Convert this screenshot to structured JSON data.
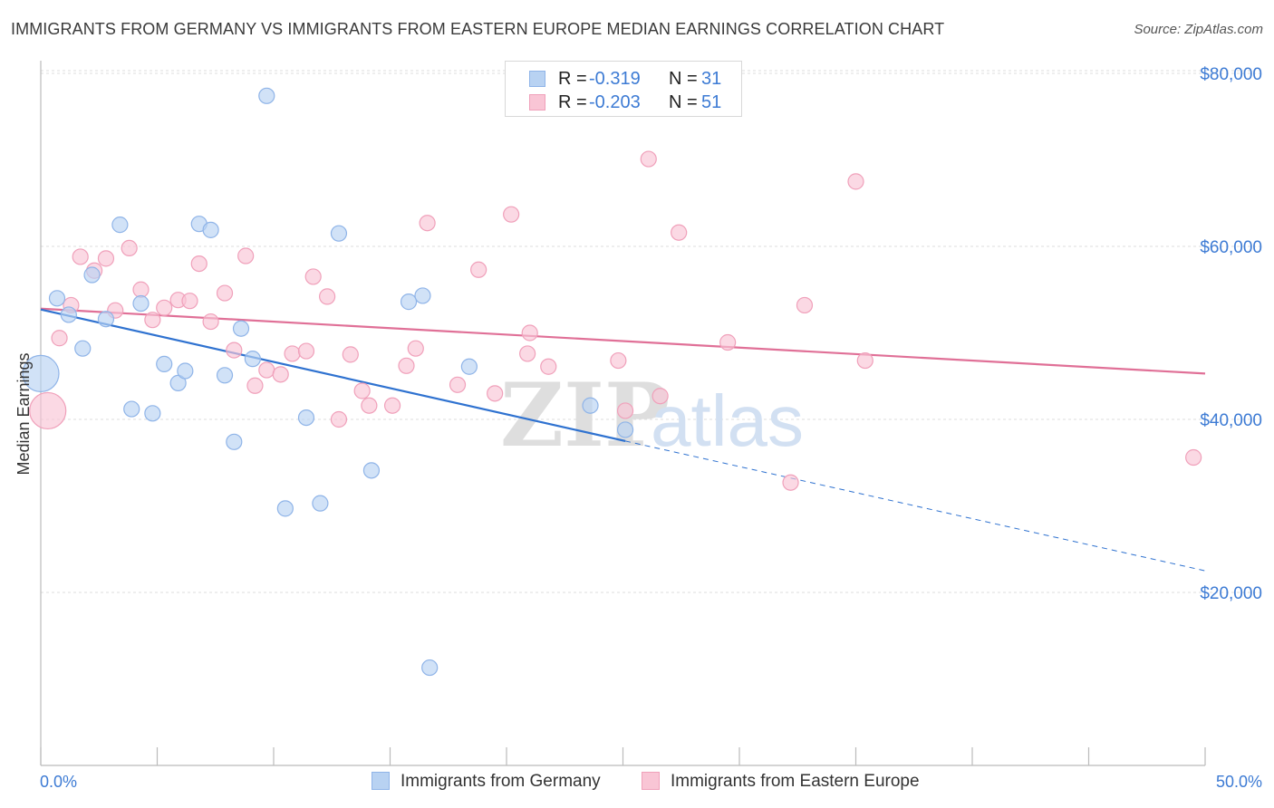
{
  "title": "IMMIGRANTS FROM GERMANY VS IMMIGRANTS FROM EASTERN EUROPE MEDIAN EARNINGS CORRELATION CHART",
  "source": "Source: ZipAtlas.com",
  "watermark": {
    "zip": "ZIP",
    "atlas": "atlas"
  },
  "legend": {
    "rows": [
      {
        "r_label": "R =",
        "r_value": "-0.319",
        "n_label": "N =",
        "n_value": "31"
      },
      {
        "r_label": "R =",
        "r_value": "-0.203",
        "n_label": "N =",
        "n_value": "51"
      }
    ]
  },
  "bottom_legend": {
    "germany": "Immigrants from Germany",
    "eastern_europe": "Immigrants from Eastern Europe"
  },
  "colors": {
    "germany_fill": "#b8d2f2",
    "germany_stroke": "#8fb4e8",
    "germany_line": "#2f72d0",
    "eastern_fill": "#f9c5d5",
    "eastern_stroke": "#f0a0ba",
    "eastern_line": "#e07097",
    "tick_text": "#3d7bd4",
    "grid": "#dcdcdc"
  },
  "chart_data": {
    "type": "scatter",
    "title": "IMMIGRANTS FROM GERMANY VS IMMIGRANTS FROM EASTERN EUROPE MEDIAN EARNINGS CORRELATION CHART",
    "xlabel": "",
    "ylabel": "Median Earnings",
    "xlim": [
      0,
      50
    ],
    "ylim": [
      0,
      82000
    ],
    "x_tick_labels": [
      "0.0%",
      "50.0%"
    ],
    "y_ticks": [
      20000,
      40000,
      60000,
      80000
    ],
    "y_tick_labels": [
      "$20,000",
      "$40,000",
      "$60,000",
      "$80,000"
    ],
    "grid": true,
    "legend_position": "top-center",
    "series": [
      {
        "name": "Immigrants from Germany",
        "r": -0.319,
        "n": 31,
        "points": [
          {
            "x": 0.0,
            "y": 45300,
            "big": true
          },
          {
            "x": 0.7,
            "y": 54000
          },
          {
            "x": 1.2,
            "y": 52100
          },
          {
            "x": 1.8,
            "y": 48200
          },
          {
            "x": 2.2,
            "y": 56700
          },
          {
            "x": 2.8,
            "y": 51600
          },
          {
            "x": 3.4,
            "y": 62500
          },
          {
            "x": 3.9,
            "y": 41200
          },
          {
            "x": 4.3,
            "y": 53400
          },
          {
            "x": 4.8,
            "y": 40700
          },
          {
            "x": 5.3,
            "y": 46400
          },
          {
            "x": 5.9,
            "y": 44200
          },
          {
            "x": 6.2,
            "y": 45600
          },
          {
            "x": 6.8,
            "y": 62600
          },
          {
            "x": 7.3,
            "y": 61900
          },
          {
            "x": 7.9,
            "y": 45100
          },
          {
            "x": 8.3,
            "y": 37400
          },
          {
            "x": 8.6,
            "y": 50500
          },
          {
            "x": 9.1,
            "y": 47000
          },
          {
            "x": 9.7,
            "y": 77400
          },
          {
            "x": 10.5,
            "y": 29700
          },
          {
            "x": 11.4,
            "y": 40200
          },
          {
            "x": 12.0,
            "y": 30300
          },
          {
            "x": 12.8,
            "y": 61500
          },
          {
            "x": 14.2,
            "y": 34100
          },
          {
            "x": 15.8,
            "y": 53600
          },
          {
            "x": 16.4,
            "y": 54300
          },
          {
            "x": 16.7,
            "y": 11300
          },
          {
            "x": 18.4,
            "y": 46100
          },
          {
            "x": 23.6,
            "y": 41600
          },
          {
            "x": 25.1,
            "y": 38800
          }
        ],
        "trend": {
          "x0": 0,
          "y0": 52700,
          "x1": 25.1,
          "y1": 37500,
          "dashed_to_x": 50,
          "dashed_to_y": 22500
        }
      },
      {
        "name": "Immigrants from Eastern Europe",
        "r": -0.203,
        "n": 51,
        "points": [
          {
            "x": 0.3,
            "y": 41000,
            "big": true
          },
          {
            "x": 0.8,
            "y": 49400
          },
          {
            "x": 1.3,
            "y": 53200
          },
          {
            "x": 1.7,
            "y": 58800
          },
          {
            "x": 2.3,
            "y": 57200
          },
          {
            "x": 2.8,
            "y": 58600
          },
          {
            "x": 3.2,
            "y": 52600
          },
          {
            "x": 3.8,
            "y": 59800
          },
          {
            "x": 4.3,
            "y": 55000
          },
          {
            "x": 4.8,
            "y": 51500
          },
          {
            "x": 5.3,
            "y": 52900
          },
          {
            "x": 5.9,
            "y": 53800
          },
          {
            "x": 6.4,
            "y": 53700
          },
          {
            "x": 6.8,
            "y": 58000
          },
          {
            "x": 7.3,
            "y": 51300
          },
          {
            "x": 7.9,
            "y": 54600
          },
          {
            "x": 8.3,
            "y": 48000
          },
          {
            "x": 8.8,
            "y": 58900
          },
          {
            "x": 9.2,
            "y": 43900
          },
          {
            "x": 9.7,
            "y": 45700
          },
          {
            "x": 10.3,
            "y": 45200
          },
          {
            "x": 10.8,
            "y": 47600
          },
          {
            "x": 11.4,
            "y": 47900
          },
          {
            "x": 11.7,
            "y": 56500
          },
          {
            "x": 12.3,
            "y": 54200
          },
          {
            "x": 12.8,
            "y": 40000
          },
          {
            "x": 13.3,
            "y": 47500
          },
          {
            "x": 13.8,
            "y": 43300
          },
          {
            "x": 14.1,
            "y": 41600
          },
          {
            "x": 15.1,
            "y": 41600
          },
          {
            "x": 15.7,
            "y": 46200
          },
          {
            "x": 16.1,
            "y": 48200
          },
          {
            "x": 16.6,
            "y": 62700
          },
          {
            "x": 17.9,
            "y": 44000
          },
          {
            "x": 18.8,
            "y": 57300
          },
          {
            "x": 19.5,
            "y": 43000
          },
          {
            "x": 20.2,
            "y": 63700
          },
          {
            "x": 20.9,
            "y": 47600
          },
          {
            "x": 21.8,
            "y": 46100
          },
          {
            "x": 21.0,
            "y": 50000
          },
          {
            "x": 24.8,
            "y": 46800
          },
          {
            "x": 25.1,
            "y": 41000
          },
          {
            "x": 26.1,
            "y": 70100
          },
          {
            "x": 26.6,
            "y": 42700
          },
          {
            "x": 27.4,
            "y": 61600
          },
          {
            "x": 29.5,
            "y": 48900
          },
          {
            "x": 32.2,
            "y": 32700
          },
          {
            "x": 32.8,
            "y": 53200
          },
          {
            "x": 35.0,
            "y": 67500
          },
          {
            "x": 35.4,
            "y": 46800
          },
          {
            "x": 49.5,
            "y": 35600
          }
        ],
        "trend": {
          "x0": 0,
          "y0": 52800,
          "x1": 50,
          "y1": 45300
        }
      }
    ]
  }
}
